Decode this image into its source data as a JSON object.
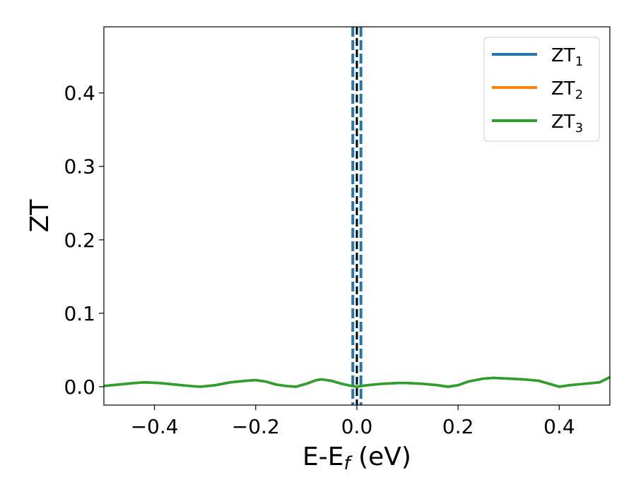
{
  "chart_data": {
    "type": "line",
    "xlabel_main": "E-E",
    "xlabel_sub": "f",
    "xlabel_unit": " (eV)",
    "ylabel": "ZT",
    "xlim": [
      -0.5,
      0.5
    ],
    "ylim": [
      -0.025,
      0.49
    ],
    "x_ticks": [
      -0.4,
      -0.2,
      0.0,
      0.2,
      0.4
    ],
    "x_tick_labels": [
      "−0.4",
      "−0.2",
      "0.0",
      "0.2",
      "0.4"
    ],
    "y_ticks": [
      0.0,
      0.1,
      0.2,
      0.3,
      0.4
    ],
    "y_tick_labels": [
      "0.0",
      "0.1",
      "0.2",
      "0.3",
      "0.4"
    ],
    "legend_position": "top-right",
    "grid": false,
    "vlines": [
      {
        "x": -0.008,
        "color": "#1f77b4",
        "style": "dashed"
      },
      {
        "x": 0.008,
        "color": "#1f77b4",
        "style": "dashed"
      },
      {
        "x": 0.0,
        "color": "#000000",
        "style": "dashed"
      }
    ],
    "x": [
      -0.5,
      -0.47,
      -0.44,
      -0.42,
      -0.39,
      -0.36,
      -0.33,
      -0.31,
      -0.28,
      -0.25,
      -0.22,
      -0.2,
      -0.18,
      -0.16,
      -0.14,
      -0.12,
      -0.1,
      -0.08,
      -0.07,
      -0.05,
      -0.03,
      -0.01,
      0.0,
      0.02,
      0.05,
      0.08,
      0.1,
      0.13,
      0.16,
      0.18,
      0.2,
      0.22,
      0.25,
      0.27,
      0.3,
      0.33,
      0.36,
      0.38,
      0.4,
      0.42,
      0.45,
      0.48,
      0.5
    ],
    "series": [
      {
        "name": "ZT",
        "name_sub": "1",
        "color": "#1f77b4",
        "values": [
          0.001,
          0.003,
          0.005,
          0.006,
          0.005,
          0.003,
          0.001,
          0.0,
          0.002,
          0.006,
          0.008,
          0.009,
          0.007,
          0.003,
          0.001,
          0.0,
          0.004,
          0.009,
          0.01,
          0.008,
          0.004,
          0.001,
          0.0,
          0.002,
          0.004,
          0.005,
          0.005,
          0.004,
          0.002,
          0.0,
          0.002,
          0.007,
          0.011,
          0.012,
          0.011,
          0.01,
          0.008,
          0.004,
          0.0,
          0.002,
          0.004,
          0.006,
          0.013
        ]
      },
      {
        "name": "ZT",
        "name_sub": "2",
        "color": "#ff7f0e",
        "values": [
          0.001,
          0.003,
          0.005,
          0.006,
          0.005,
          0.003,
          0.001,
          0.0,
          0.002,
          0.006,
          0.008,
          0.009,
          0.007,
          0.003,
          0.001,
          0.0,
          0.004,
          0.009,
          0.01,
          0.008,
          0.004,
          0.001,
          0.0,
          0.002,
          0.004,
          0.005,
          0.005,
          0.004,
          0.002,
          0.0,
          0.002,
          0.007,
          0.011,
          0.012,
          0.011,
          0.01,
          0.008,
          0.004,
          0.0,
          0.002,
          0.004,
          0.006,
          0.013
        ]
      },
      {
        "name": "ZT",
        "name_sub": "3",
        "color": "#2ca02c",
        "values": [
          0.001,
          0.003,
          0.005,
          0.006,
          0.005,
          0.003,
          0.001,
          0.0,
          0.002,
          0.006,
          0.008,
          0.009,
          0.007,
          0.003,
          0.001,
          0.0,
          0.004,
          0.009,
          0.01,
          0.008,
          0.004,
          0.001,
          0.0,
          0.002,
          0.004,
          0.005,
          0.005,
          0.004,
          0.002,
          0.0,
          0.002,
          0.007,
          0.011,
          0.012,
          0.011,
          0.01,
          0.008,
          0.004,
          0.0,
          0.002,
          0.004,
          0.006,
          0.013
        ]
      }
    ]
  }
}
